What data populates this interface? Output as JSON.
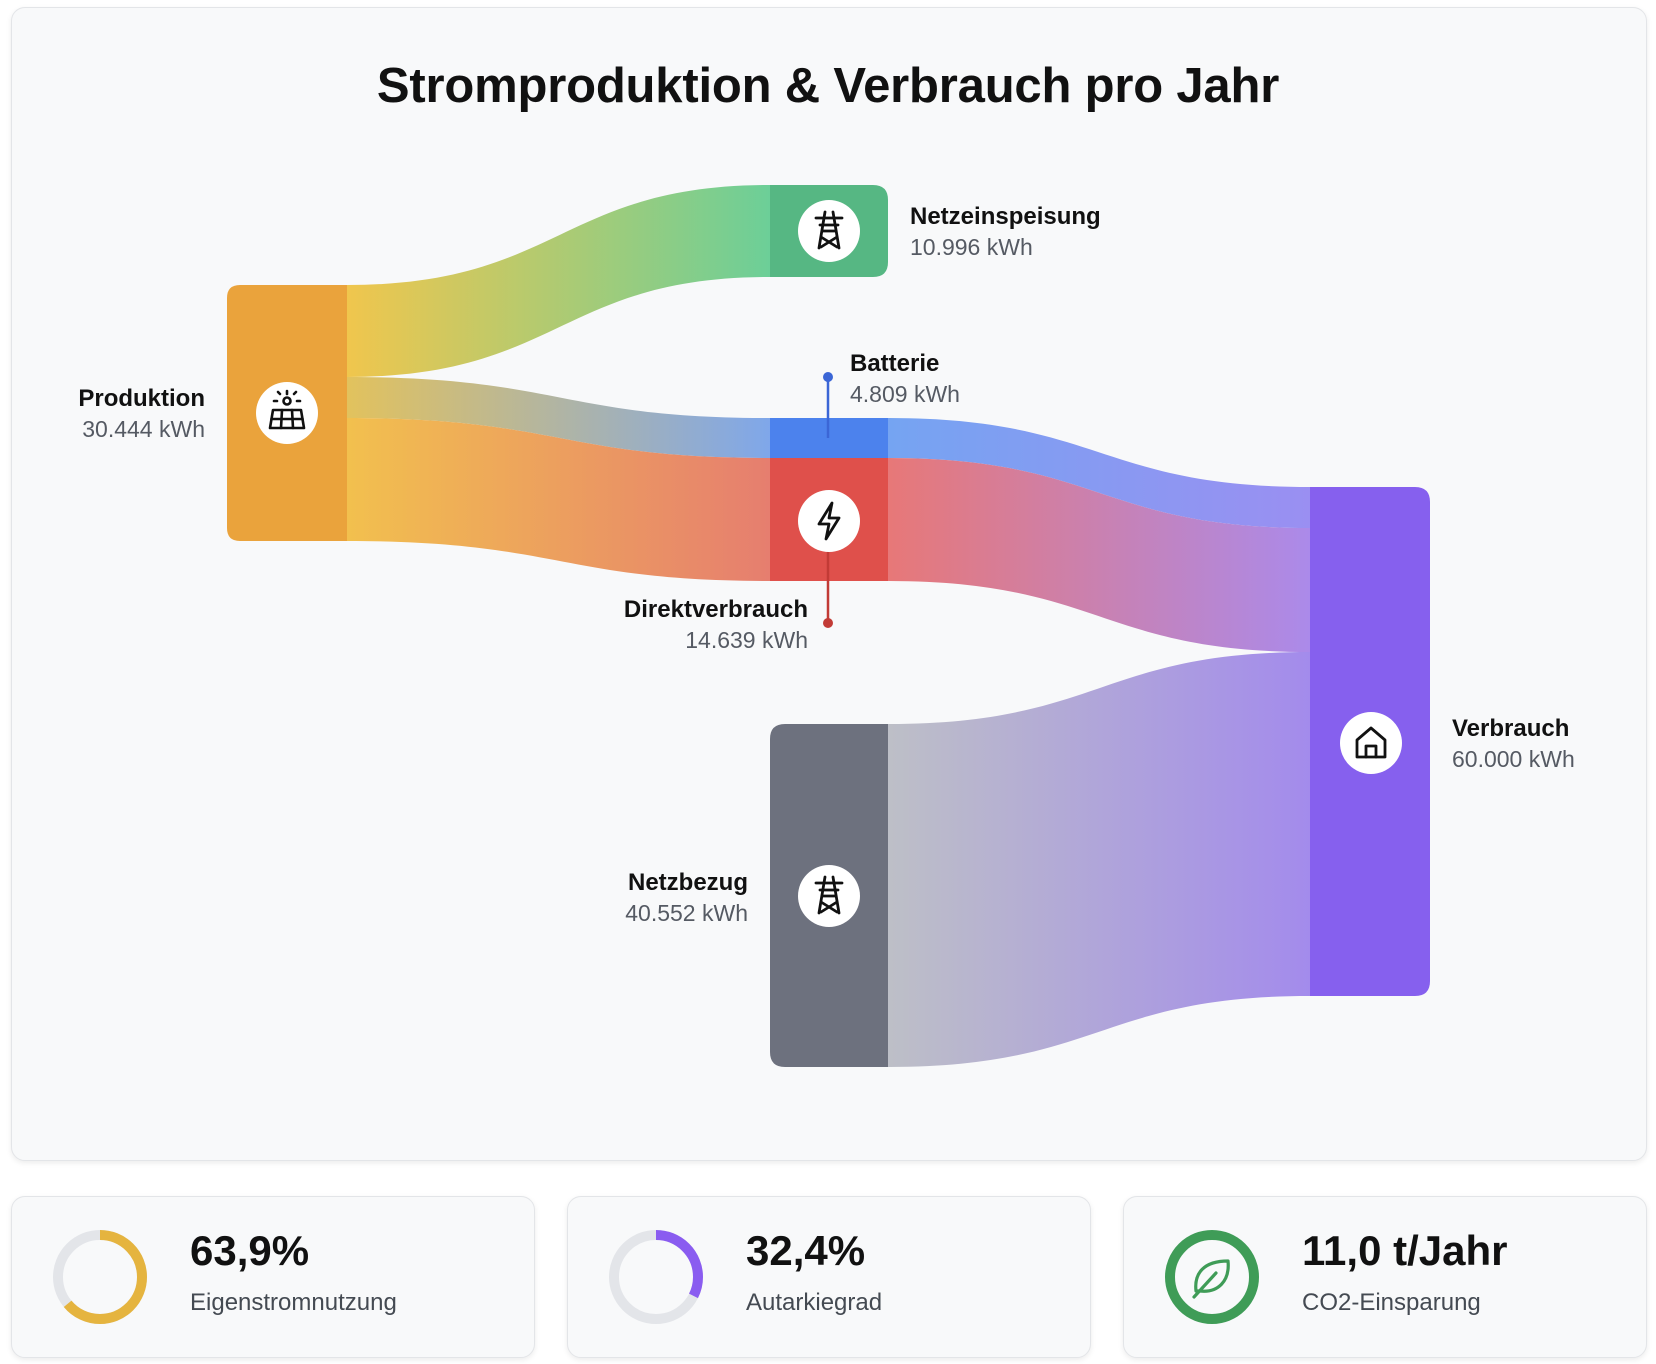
{
  "title": "Stromproduktion & Verbrauch pro Jahr",
  "nodes": {
    "produktion": {
      "name": "Produktion",
      "value": "30.444 kWh",
      "color": "#eaa33c",
      "icon": "solar-panel-icon"
    },
    "netzeinspeisung": {
      "name": "Netzeinspeisung",
      "value": "10.996 kWh",
      "color": "#56b783",
      "icon": "power-pylon-icon"
    },
    "batterie": {
      "name": "Batterie",
      "value": "4.809 kWh",
      "color": "#4c82ed"
    },
    "direktverbrauch": {
      "name": "Direktverbrauch",
      "value": "14.639 kWh",
      "color": "#df504b",
      "icon": "lightning-bolt-icon"
    },
    "netzbezug": {
      "name": "Netzbezug",
      "value": "40.552 kWh",
      "color": "#6d717e",
      "icon": "power-pylon-icon"
    },
    "verbrauch": {
      "name": "Verbrauch",
      "value": "60.000 kWh",
      "color": "#8660ee",
      "icon": "home-icon"
    }
  },
  "stats": [
    {
      "value": "63,9%",
      "label": "Eigenstromnutzung",
      "fraction": 0.639,
      "color": "#e5b43f",
      "icon": "ring-progress-icon"
    },
    {
      "value": "32,4%",
      "label": "Autarkiegrad",
      "fraction": 0.324,
      "color": "#8a5cf0",
      "icon": "ring-progress-icon"
    },
    {
      "value": "11,0 t/Jahr",
      "label": "CO2-Einsparung",
      "color": "#3f9c57",
      "icon": "leaf-icon"
    }
  ]
}
